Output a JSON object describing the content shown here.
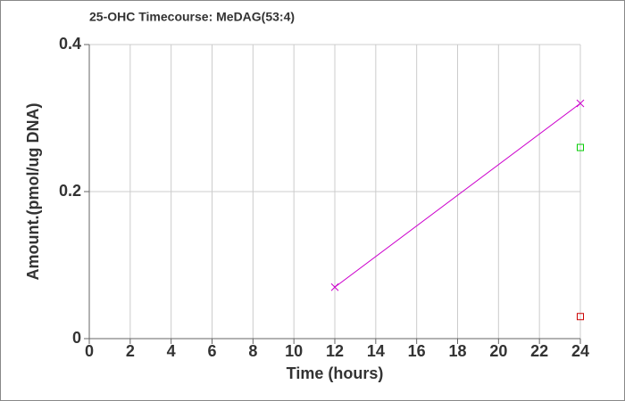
{
  "chart_data": {
    "type": "line",
    "title": "25-OHC Timecourse: MeDAG(53:4)",
    "x_label": "Time (hours)",
    "y_label": "Amount.(pmol/ug DNA)",
    "xlim": [
      0,
      24
    ],
    "xticks": [
      0,
      2,
      4,
      6,
      8,
      10,
      12,
      14,
      16,
      18,
      20,
      22,
      24
    ],
    "ylim": [
      0,
      0.4
    ],
    "yticks": [
      0,
      0.2,
      0.4
    ],
    "grid": true,
    "series": [
      {
        "color": "#cc00cc",
        "marker": "x",
        "line": true,
        "x": [
          12,
          24
        ],
        "values": [
          0.07,
          0.32
        ]
      },
      {
        "color": "#00cc00",
        "marker": "square",
        "line": false,
        "x": [
          24
        ],
        "values": [
          0.26
        ]
      },
      {
        "color": "#cc0000",
        "marker": "square",
        "line": false,
        "x": [
          24
        ],
        "values": [
          0.03
        ]
      }
    ]
  }
}
